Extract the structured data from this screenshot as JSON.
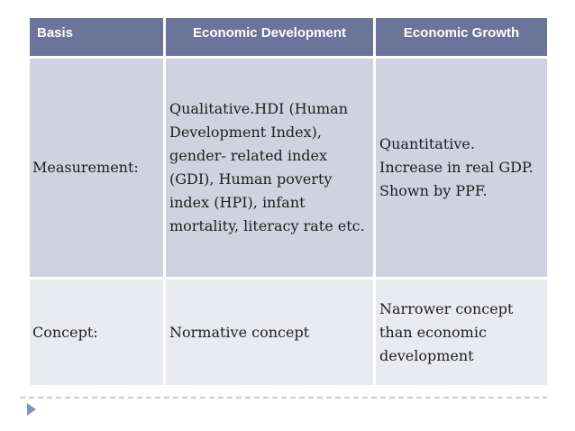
{
  "theme": {
    "header_bg": "#6C7499",
    "header_text": "#FFFFFF",
    "row_odd_bg": "#CFD3DF",
    "row_even_bg": "#EAEBF0",
    "body_text": "#1E1E1E",
    "divider_dash": "#C2CEDE",
    "arrow": "#7F94B6",
    "slide_bg": "#FFFFFF"
  },
  "table": {
    "headers": {
      "basis": "Basis",
      "development": "Economic Development",
      "growth": "Economic Growth"
    },
    "rows": [
      {
        "basis": "Measurement:",
        "development": "Qualitative.HDI (Human\nDevelopment Index),\ngender- related index\n(GDI), Human poverty\nindex (HPI), infant\nmortality, literacy rate etc.",
        "growth": "Quantitative.\nIncrease in real GDP.\nShown by PPF."
      },
      {
        "basis": "Concept:",
        "development": "Normative concept",
        "growth": "Narrower concept\nthan economic\ndevelopment"
      }
    ]
  },
  "footer": {
    "bullet_icon": "play-arrow-icon"
  }
}
